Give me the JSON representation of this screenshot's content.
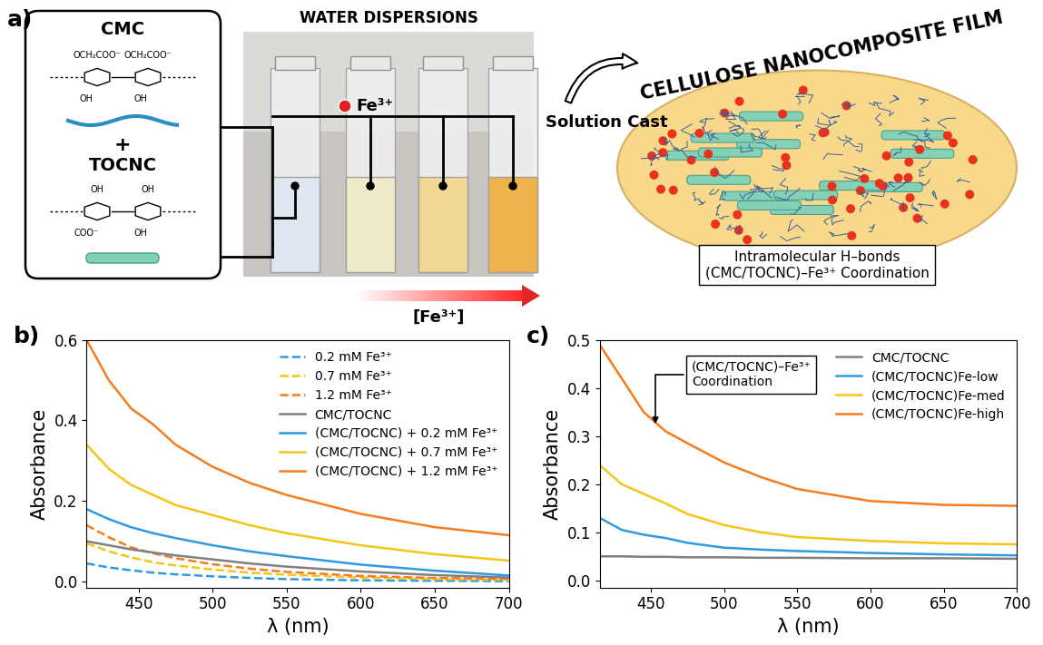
{
  "diagram": {
    "panel_label": "a)",
    "cmc": {
      "label": "CMC",
      "groups": [
        "OCH₂COO⁻",
        "OH",
        "OH",
        "OCH₂COO⁻"
      ]
    },
    "plus": "+",
    "tocnc": {
      "label": "TOCNC",
      "groups": [
        "OH",
        "COO⁻",
        "OH",
        "OH"
      ]
    },
    "photo_title": "WATER DISPERSIONS",
    "ion_label": "Fe³⁺",
    "gradient_label": "[Fe³⁺]",
    "arrow_label": "Solution Cast",
    "film_title": "CELLULOSE NANOCOMPOSITE FILM",
    "film_caption": "Intramolecular H–bonds\n(CMC/TOCNC)–Fe³⁺ Coordination"
  },
  "chart_data": [
    {
      "type": "line",
      "panel_label": "b)",
      "x_label": "λ (nm)",
      "y_label": "Absorbance",
      "x": [
        415,
        430,
        445,
        460,
        475,
        500,
        525,
        550,
        600,
        650,
        700
      ],
      "xlim": [
        415,
        700
      ],
      "xticks": [
        450,
        500,
        550,
        600,
        650,
        700
      ],
      "ylim": [
        -0.015,
        0.6
      ],
      "yticks": [
        0.0,
        0.2,
        0.4,
        0.6
      ],
      "legend": "upper right",
      "series": [
        {
          "name": "0.2 mM Fe³⁺",
          "color": "#2e9be0",
          "line_style": "dashed",
          "values": [
            0.045,
            0.035,
            0.028,
            0.022,
            0.018,
            0.013,
            0.009,
            0.006,
            0.003,
            0.002,
            0.001
          ]
        },
        {
          "name": "0.7 mM Fe³⁺",
          "color": "#f5c518",
          "line_style": "dashed",
          "values": [
            0.095,
            0.075,
            0.06,
            0.048,
            0.04,
            0.03,
            0.022,
            0.017,
            0.01,
            0.006,
            0.004
          ]
        },
        {
          "name": "1.2 mM Fe³⁺",
          "color": "#f57c1f",
          "line_style": "dashed",
          "values": [
            0.14,
            0.11,
            0.085,
            0.07,
            0.058,
            0.043,
            0.032,
            0.024,
            0.014,
            0.009,
            0.007
          ]
        },
        {
          "name": "CMC/TOCNC",
          "color": "#808080",
          "line_style": "solid",
          "values": [
            0.1,
            0.09,
            0.08,
            0.072,
            0.065,
            0.055,
            0.045,
            0.037,
            0.025,
            0.016,
            0.01
          ]
        },
        {
          "name": "(CMC/TOCNC) + 0.2 mM Fe³⁺",
          "color": "#2e9be0",
          "line_style": "solid",
          "values": [
            0.18,
            0.155,
            0.135,
            0.12,
            0.108,
            0.09,
            0.075,
            0.063,
            0.042,
            0.027,
            0.015
          ]
        },
        {
          "name": "(CMC/TOCNC) + 0.7 mM Fe³⁺",
          "color": "#f5c518",
          "line_style": "solid",
          "values": [
            0.34,
            0.28,
            0.24,
            0.215,
            0.19,
            0.165,
            0.14,
            0.12,
            0.09,
            0.068,
            0.052
          ]
        },
        {
          "name": "(CMC/TOCNC) + 1.2 mM Fe³⁺",
          "color": "#f57c1f",
          "line_style": "solid",
          "values": [
            0.6,
            0.5,
            0.43,
            0.39,
            0.34,
            0.285,
            0.245,
            0.215,
            0.168,
            0.135,
            0.115
          ]
        }
      ]
    },
    {
      "type": "line",
      "panel_label": "c)",
      "x_label": "λ (nm)",
      "y_label": "Absorbance",
      "x": [
        415,
        430,
        445,
        460,
        475,
        500,
        525,
        550,
        600,
        650,
        700
      ],
      "xlim": [
        415,
        700
      ],
      "xticks": [
        450,
        500,
        550,
        600,
        650,
        700
      ],
      "ylim": [
        -0.015,
        0.5
      ],
      "yticks": [
        0.0,
        0.1,
        0.2,
        0.3,
        0.4,
        0.5
      ],
      "legend": "upper right",
      "annotations": [
        {
          "text": "(CMC/TOCNC)–Fe³⁺\nCoordination",
          "x": 453,
          "y": 0.32
        }
      ],
      "series": [
        {
          "name": "CMC/TOCNC",
          "color": "#808080",
          "line_style": "solid",
          "values": [
            0.05,
            0.05,
            0.049,
            0.049,
            0.048,
            0.048,
            0.047,
            0.047,
            0.046,
            0.046,
            0.045
          ]
        },
        {
          "name": "(CMC/TOCNC)Fe-low",
          "color": "#2e9be0",
          "line_style": "solid",
          "values": [
            0.13,
            0.105,
            0.095,
            0.088,
            0.078,
            0.068,
            0.064,
            0.061,
            0.057,
            0.054,
            0.052
          ]
        },
        {
          "name": "(CMC/TOCNC)Fe-med",
          "color": "#f5c518",
          "line_style": "solid",
          "values": [
            0.24,
            0.2,
            0.18,
            0.16,
            0.138,
            0.115,
            0.1,
            0.09,
            0.082,
            0.077,
            0.075
          ]
        },
        {
          "name": "(CMC/TOCNC)Fe-high",
          "color": "#f57c1f",
          "line_style": "solid",
          "values": [
            0.49,
            0.42,
            0.35,
            0.31,
            0.285,
            0.245,
            0.215,
            0.19,
            0.165,
            0.157,
            0.155
          ]
        }
      ]
    }
  ]
}
